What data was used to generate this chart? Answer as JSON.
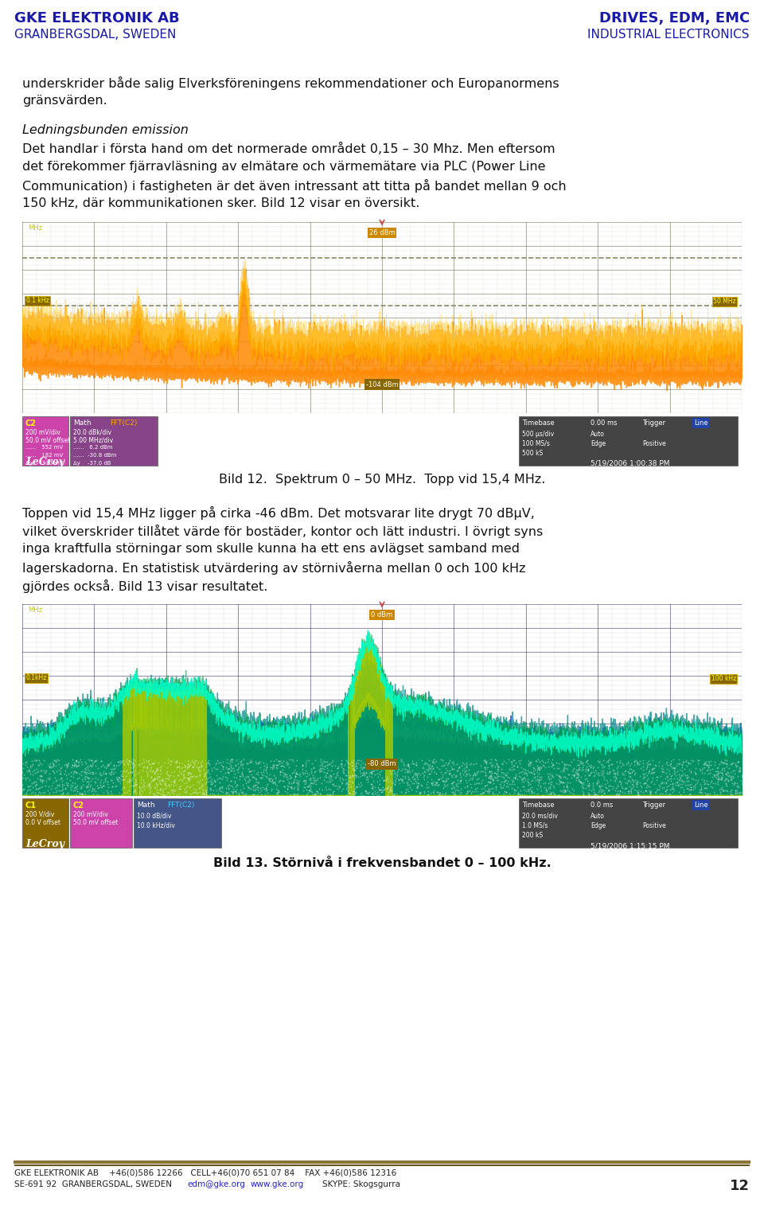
{
  "header_bg": "#c8e4ee",
  "header_left_bold": "GKE ELEKTRONIK AB",
  "header_left_sub": "GRANBERGSDAL, SWEDEN",
  "header_right_bold": "DRIVES, EDM, EMC",
  "header_right_sub": "INDUSTRIAL ELECTRONICS",
  "header_text_color": "#1a1aaa",
  "footer_line_color1": "#8B7536",
  "footer_line_color2": "#6B5520",
  "footer_text": "GKE ELEKTRONIK AB    +46(0)586 12266   CELL+46(0)70 651 07 84    FAX +46(0)586 12316",
  "footer_text2": "SE-691 92  GRANBERGSDAL, SWEDEN",
  "footer_email": "edm@gke.org",
  "footer_www": "www.gke.org",
  "footer_skype": "SKYPE: Skogsgurra",
  "footer_page": "12",
  "footer_text_color": "#222222",
  "footer_link_color": "#2222cc",
  "body_text_color": "#111111",
  "body_bg": "#ffffff",
  "para1": "underskrider både salig Elverksföreningens rekommendationer och Europanormens gränsvärden.",
  "section_title": "Ledningsbunden emission",
  "para2": "Det handlar i första hand om det normerade området 0,15 – 30 Mhz. Men eftersom det förekommer fjärravläsning av elmätare och värmemätare via PLC (Power Line Communication) i fastigheten är det även intressant att titta på bandet mellan 9 och 150 kHz, där kommunikationen sker. Bild 12 visar en översikt.",
  "caption1": "Bild 12.  Spektrum 0 – 50 MHz.  Topp vid 15,4 MHz.",
  "para3": "Toppen vid 15,4 MHz ligger på cirka -46 dBm. Det motsvarar lite drygt 70 dBμV, vilket överskrider tillåtet värde för bostäder, kontor och lätt industri. I övrigt syns inga kraftfulla störningar som skulle kunna ha ett ens avlägset samband med lagerskadorna. En statistisk utvärdering av störnivåerna mellan 0 och 100 kHz gjördes också. Bild 13 visar resultatet.",
  "caption2": "Bild 13. Störnivå i frekvensbandet 0 – 100 kHz."
}
